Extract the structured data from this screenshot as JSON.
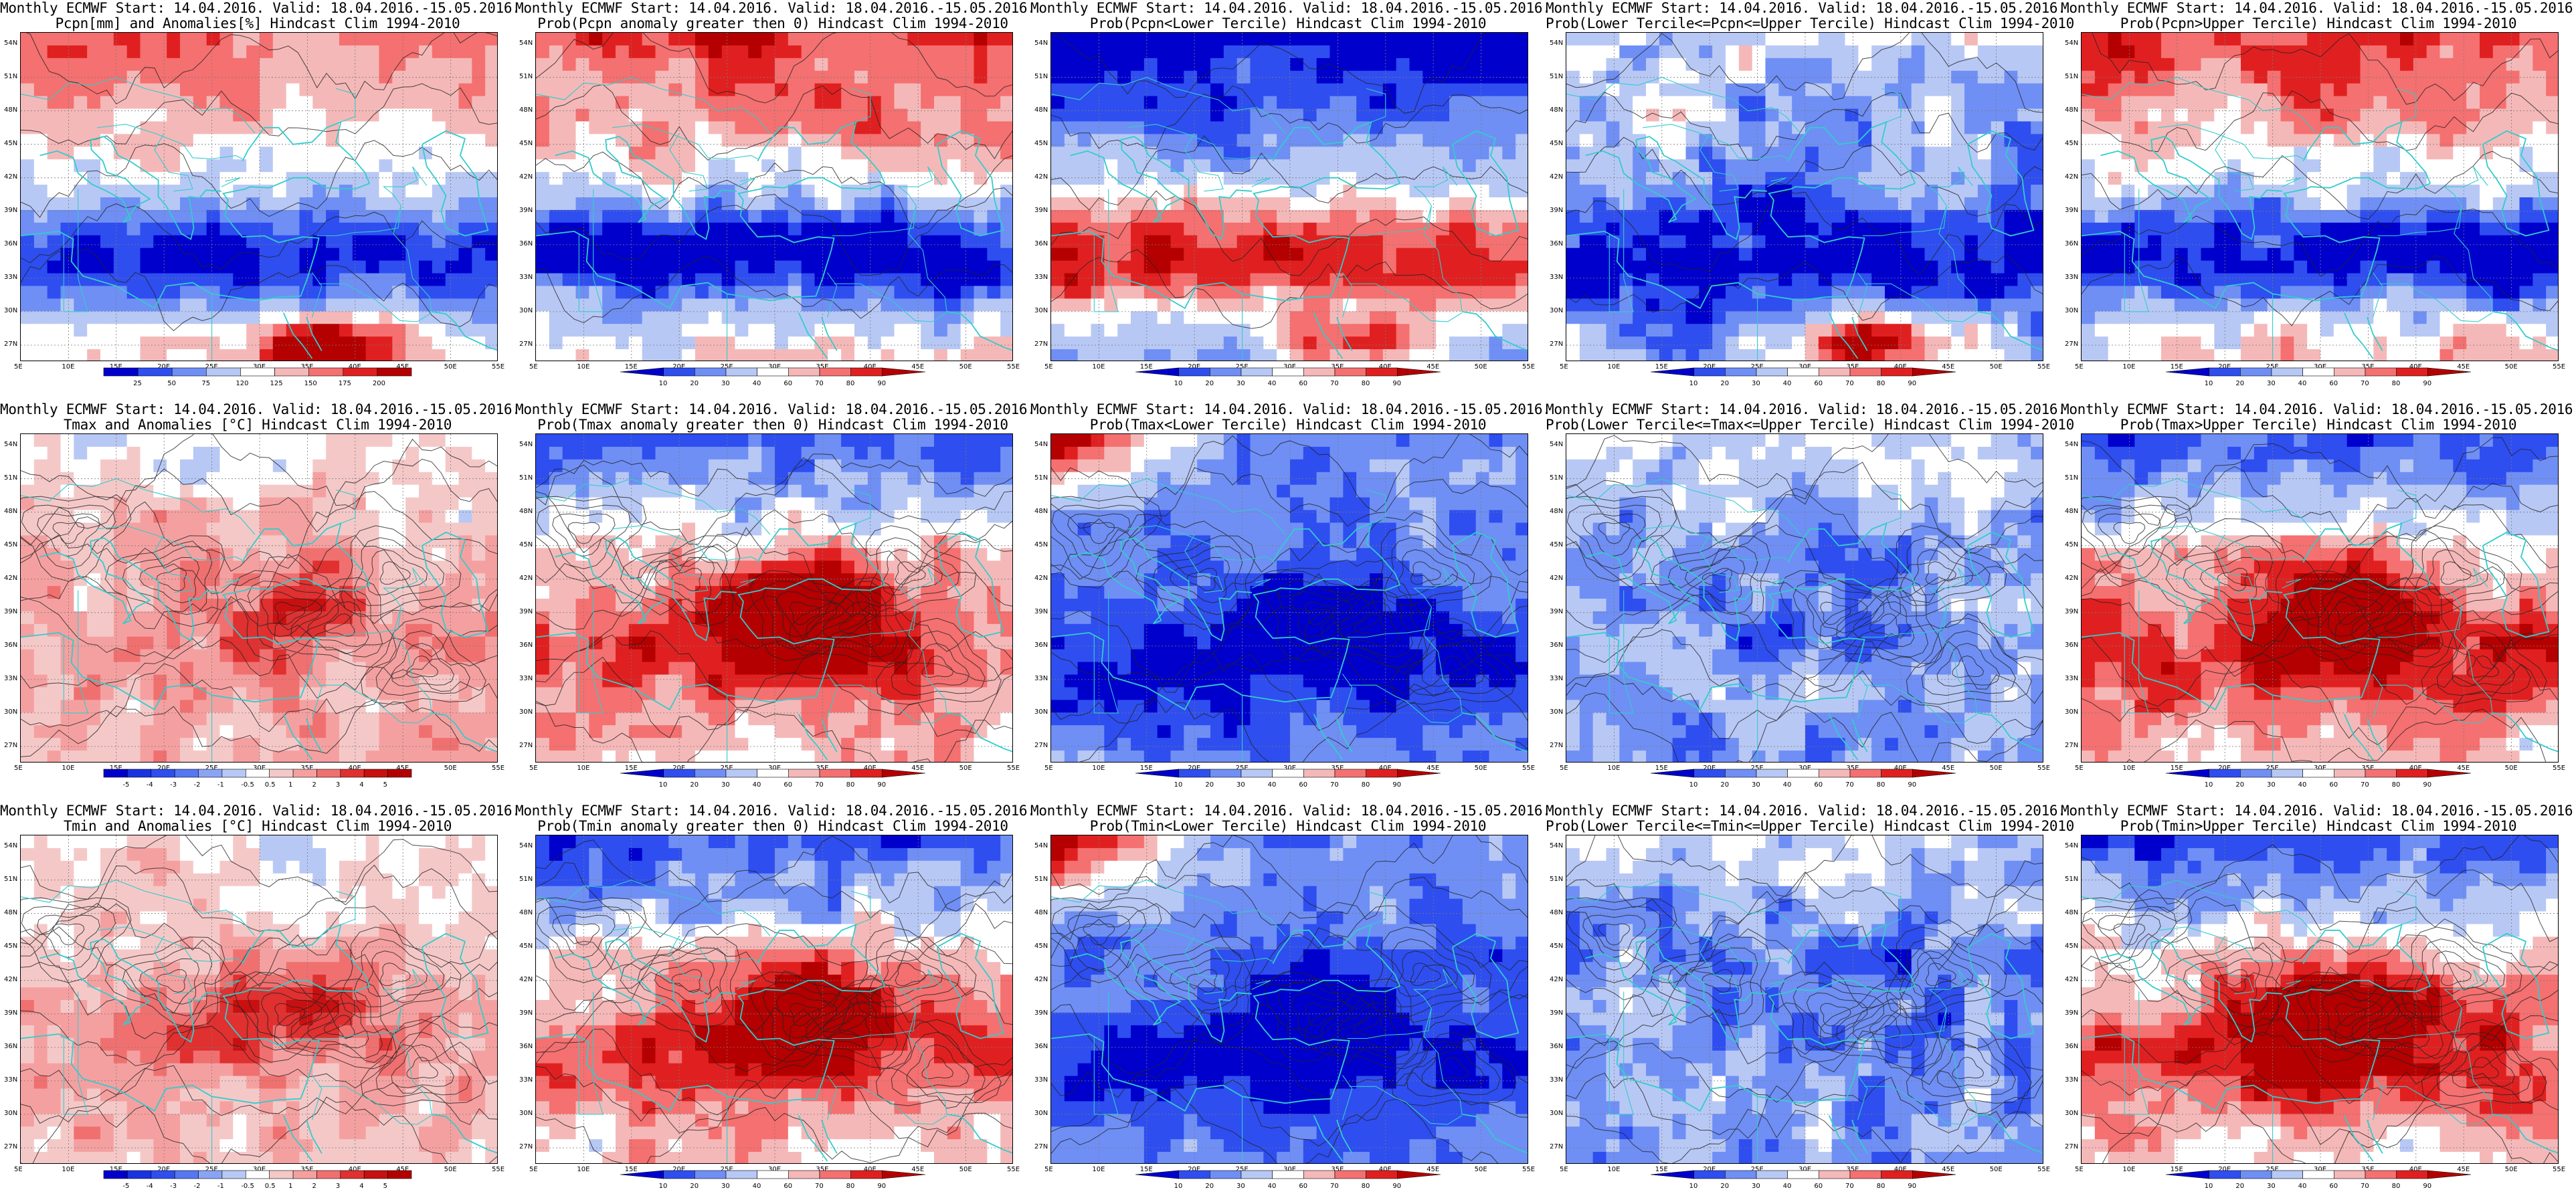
{
  "figure": {
    "rows": [
      {
        "panels": [
          {
            "title_line1": "Monthly ECMWF Start: 14.04.2016. Valid: 18.04.2016.-15.05.2016.",
            "title_line2": "Pcpn[mm] and Anomalies[%] Hindcast Clim 1994-2010",
            "legend_labels": [
              "25",
              "50",
              "75",
              "120",
              "125",
              "150",
              "175",
              "200"
            ],
            "legend_colors": [
              "#0000cd",
              "#2e4ef0",
              "#6f8ff5",
              "#b8c8f5",
              "#ffffff",
              "#f5b8b8",
              "#f57070",
              "#e02020",
              "#b40000"
            ],
            "legend_arrows": false,
            "field": "anom"
          },
          {
            "title_line1": "Monthly ECMWF Start: 14.04.2016. Valid: 18.04.2016.-15.05.2016.",
            "title_line2": "Prob(Pcpn anomaly greater then 0) Hindcast Clim 1994-2010",
            "legend_labels": [
              "10",
              "20",
              "30",
              "40",
              "60",
              "70",
              "80",
              "90"
            ],
            "legend_colors": [
              "#0000cd",
              "#2e4ef0",
              "#6f8ff5",
              "#b8c8f5",
              "#ffffff",
              "#f5b8b8",
              "#f57070",
              "#e02020",
              "#b40000"
            ],
            "legend_arrows": true,
            "field": "prob_pos"
          },
          {
            "title_line1": "Monthly ECMWF Start: 14.04.2016. Valid: 18.04.2016.-15.05.2016.",
            "title_line2": "Prob(Pcpn<Lower Tercile) Hindcast Clim 1994-2010",
            "legend_labels": [
              "10",
              "20",
              "30",
              "40",
              "60",
              "70",
              "80",
              "90"
            ],
            "legend_colors": [
              "#0000cd",
              "#2e4ef0",
              "#6f8ff5",
              "#b8c8f5",
              "#ffffff",
              "#f5b8b8",
              "#f57070",
              "#e02020",
              "#b40000"
            ],
            "legend_arrows": true,
            "field": "prob_low"
          },
          {
            "title_line1": "Monthly ECMWF Start: 14.04.2016. Valid: 18.04.2016.-15.05.2016.",
            "title_line2": "Prob(Lower Tercile<=Pcpn<=Upper Tercile) Hindcast Clim 1994-2010",
            "legend_labels": [
              "10",
              "20",
              "30",
              "40",
              "60",
              "70",
              "80",
              "90"
            ],
            "legend_colors": [
              "#0000cd",
              "#2e4ef0",
              "#6f8ff5",
              "#b8c8f5",
              "#ffffff",
              "#f5b8b8",
              "#f57070",
              "#e02020",
              "#b40000"
            ],
            "legend_arrows": true,
            "field": "prob_mid"
          },
          {
            "title_line1": "Monthly ECMWF Start: 14.04.2016. Valid: 18.04.2016.-15.05.2016.",
            "title_line2": "Prob(Pcpn>Upper Tercile) Hindcast Clim 1994-2010",
            "legend_labels": [
              "10",
              "20",
              "30",
              "40",
              "60",
              "70",
              "80",
              "90"
            ],
            "legend_colors": [
              "#0000cd",
              "#2e4ef0",
              "#6f8ff5",
              "#b8c8f5",
              "#ffffff",
              "#f5b8b8",
              "#f57070",
              "#e02020",
              "#b40000"
            ],
            "legend_arrows": true,
            "field": "prob_pos"
          }
        ]
      },
      {
        "panels": [
          {
            "title_line1": "Monthly ECMWF Start: 14.04.2016. Valid: 18.04.2016.-15.05.2016.",
            "title_line2": "Tmax and Anomalies [°C] Hindcast Clim 1994-2010",
            "legend_labels": [
              "-5",
              "-4",
              "-3",
              "-2",
              "-1",
              "-0.5",
              "0.5",
              "1",
              "2",
              "3",
              "4",
              "5"
            ],
            "legend_colors": [
              "#0000cd",
              "#1a33e0",
              "#2e4ef0",
              "#5577f2",
              "#8aa4f5",
              "#b8c8f5",
              "#ffffff",
              "#f5c8c8",
              "#f5a0a0",
              "#f07070",
              "#e03030",
              "#c81010",
              "#b40000"
            ],
            "legend_arrows": false,
            "field": "t_anom"
          },
          {
            "title_line1": "Monthly ECMWF Start: 14.04.2016. Valid: 18.04.2016.-15.05.2016.",
            "title_line2": "Prob(Tmax anomaly greater then 0) Hindcast Clim 1994-2010",
            "legend_labels": [
              "10",
              "20",
              "30",
              "40",
              "60",
              "70",
              "80",
              "90"
            ],
            "legend_colors": [
              "#0000cd",
              "#2e4ef0",
              "#6f8ff5",
              "#b8c8f5",
              "#ffffff",
              "#f5b8b8",
              "#f57070",
              "#e02020",
              "#b40000"
            ],
            "legend_arrows": true,
            "field": "t_warm"
          },
          {
            "title_line1": "Monthly ECMWF Start: 14.04.2016. Valid: 18.04.2016.-15.05.2016.",
            "title_line2": "Prob(Tmax<Lower Tercile) Hindcast Clim 1994-2010",
            "legend_labels": [
              "10",
              "20",
              "30",
              "40",
              "60",
              "70",
              "80",
              "90"
            ],
            "legend_colors": [
              "#0000cd",
              "#2e4ef0",
              "#6f8ff5",
              "#b8c8f5",
              "#ffffff",
              "#f5b8b8",
              "#f57070",
              "#e02020",
              "#b40000"
            ],
            "legend_arrows": true,
            "field": "t_cold"
          },
          {
            "title_line1": "Monthly ECMWF Start: 14.04.2016. Valid: 18.04.2016.-15.05.2016.",
            "title_line2": "Prob(Lower Tercile<=Tmax<=Upper Tercile) Hindcast Clim 1994-2010",
            "legend_labels": [
              "10",
              "20",
              "30",
              "40",
              "60",
              "70",
              "80",
              "90"
            ],
            "legend_colors": [
              "#0000cd",
              "#2e4ef0",
              "#6f8ff5",
              "#b8c8f5",
              "#ffffff",
              "#f5b8b8",
              "#f57070",
              "#e02020",
              "#b40000"
            ],
            "legend_arrows": true,
            "field": "t_mid"
          },
          {
            "title_line1": "Monthly ECMWF Start: 14.04.2016. Valid: 18.04.2016.-15.05.2016.",
            "title_line2": "Prob(Tmax>Upper Tercile) Hindcast Clim 1994-2010",
            "legend_labels": [
              "10",
              "20",
              "30",
              "40",
              "60",
              "70",
              "80",
              "90"
            ],
            "legend_colors": [
              "#0000cd",
              "#2e4ef0",
              "#6f8ff5",
              "#b8c8f5",
              "#ffffff",
              "#f5b8b8",
              "#f57070",
              "#e02020",
              "#b40000"
            ],
            "legend_arrows": true,
            "field": "t_warm"
          }
        ]
      },
      {
        "panels": [
          {
            "title_line1": "Monthly ECMWF Start: 14.04.2016. Valid: 18.04.2016.-15.05.2016.",
            "title_line2": "Tmin and Anomalies [°C] Hindcast Clim 1994-2010",
            "legend_labels": [
              "-5",
              "-4",
              "-3",
              "-2",
              "-1",
              "-0.5",
              "0.5",
              "1",
              "2",
              "3",
              "4",
              "5"
            ],
            "legend_colors": [
              "#0000cd",
              "#1a33e0",
              "#2e4ef0",
              "#5577f2",
              "#8aa4f5",
              "#b8c8f5",
              "#ffffff",
              "#f5c8c8",
              "#f5a0a0",
              "#f07070",
              "#e03030",
              "#c81010",
              "#b40000"
            ],
            "legend_arrows": false,
            "field": "t_anom"
          },
          {
            "title_line1": "Monthly ECMWF Start: 14.04.2016. Valid: 18.04.2016.-15.05.2016.",
            "title_line2": "Prob(Tmin anomaly greater then 0) Hindcast Clim 1994-2010",
            "legend_labels": [
              "10",
              "20",
              "30",
              "40",
              "60",
              "70",
              "80",
              "90"
            ],
            "legend_colors": [
              "#0000cd",
              "#2e4ef0",
              "#6f8ff5",
              "#b8c8f5",
              "#ffffff",
              "#f5b8b8",
              "#f57070",
              "#e02020",
              "#b40000"
            ],
            "legend_arrows": true,
            "field": "t_warm"
          },
          {
            "title_line1": "Monthly ECMWF Start: 14.04.2016. Valid: 18.04.2016.-15.05.2016.",
            "title_line2": "Prob(Tmin<Lower Tercile) Hindcast Clim 1994-2010",
            "legend_labels": [
              "10",
              "20",
              "30",
              "40",
              "60",
              "70",
              "80",
              "90"
            ],
            "legend_colors": [
              "#0000cd",
              "#2e4ef0",
              "#6f8ff5",
              "#b8c8f5",
              "#ffffff",
              "#f5b8b8",
              "#f57070",
              "#e02020",
              "#b40000"
            ],
            "legend_arrows": true,
            "field": "t_cold"
          },
          {
            "title_line1": "Monthly ECMWF Start: 14.04.2016. Valid: 18.04.2016.-15.05.2016.",
            "title_line2": "Prob(Lower Tercile<=Tmin<=Upper Tercile) Hindcast Clim 1994-2010",
            "legend_labels": [
              "10",
              "20",
              "30",
              "40",
              "60",
              "70",
              "80",
              "90"
            ],
            "legend_colors": [
              "#0000cd",
              "#2e4ef0",
              "#6f8ff5",
              "#b8c8f5",
              "#ffffff",
              "#f5b8b8",
              "#f57070",
              "#e02020",
              "#b40000"
            ],
            "legend_arrows": true,
            "field": "t_mid"
          },
          {
            "title_line1": "Monthly ECMWF Start: 14.04.2016. Valid: 18.04.2016.-15.05.2016.",
            "title_line2": "Prob(Tmin>Upper Tercile) Hindcast Clim 1994-2010",
            "legend_labels": [
              "10",
              "20",
              "30",
              "40",
              "60",
              "70",
              "80",
              "90"
            ],
            "legend_colors": [
              "#0000cd",
              "#2e4ef0",
              "#6f8ff5",
              "#b8c8f5",
              "#ffffff",
              "#f5b8b8",
              "#f57070",
              "#e02020",
              "#b40000"
            ],
            "legend_arrows": true,
            "field": "t_warm"
          }
        ]
      }
    ],
    "lat_labels": [
      "54N",
      "51N",
      "48N",
      "45N",
      "42N",
      "39N",
      "36N",
      "33N",
      "30N",
      "27N"
    ],
    "lon_labels": [
      "5E",
      "10E",
      "15E",
      "20E",
      "25E",
      "30E",
      "35E",
      "40E",
      "45E",
      "50E",
      "55E"
    ],
    "lat_range": [
      25.5,
      55
    ],
    "lon_range": [
      5,
      55
    ],
    "coast_color": "#33cccc",
    "contour_color": "#222222",
    "grid_color": "#7a7a7a"
  }
}
